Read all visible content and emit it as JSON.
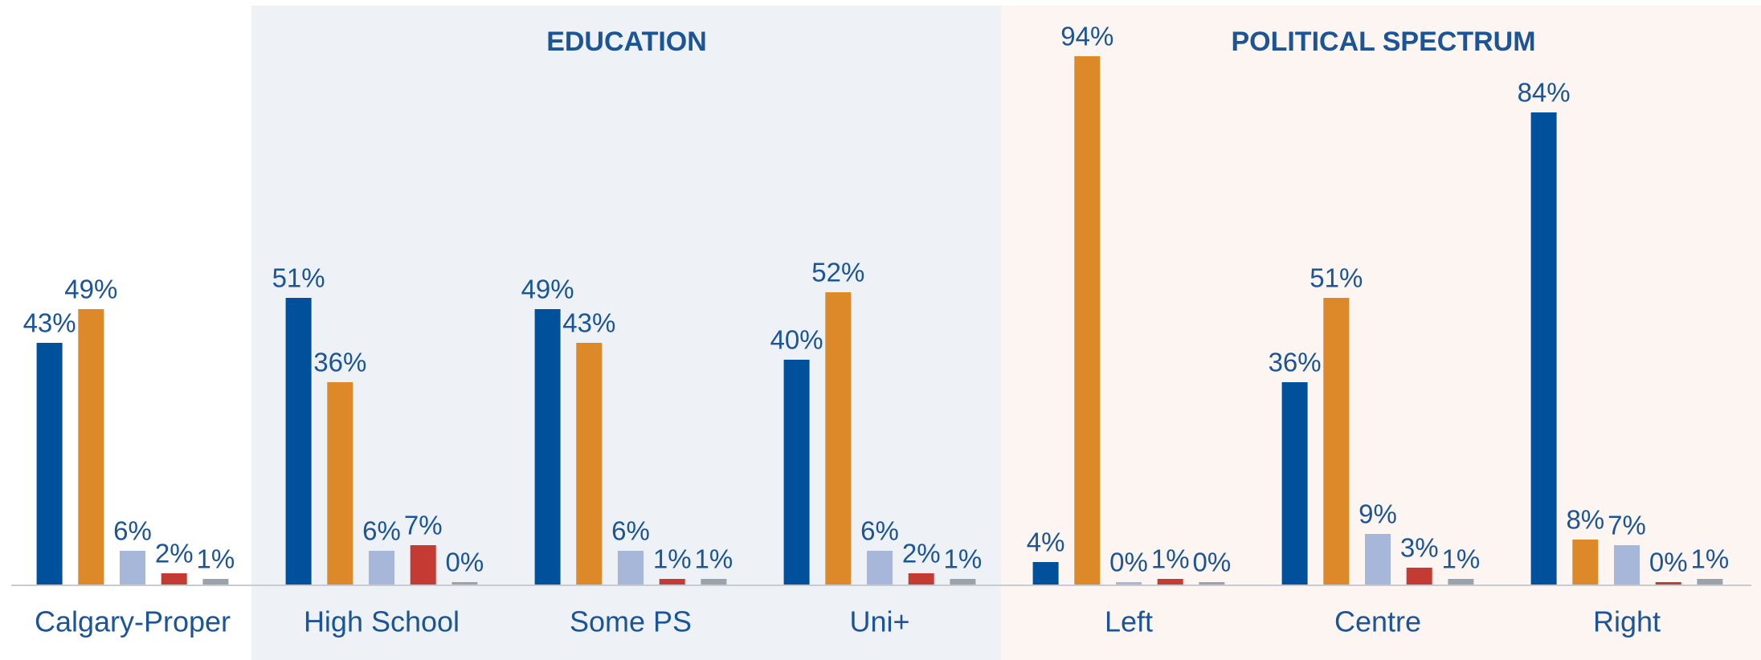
{
  "chart_data": {
    "type": "bar",
    "annotations": [
      "EDUCATION",
      "POLITICAL SPECTRUM"
    ],
    "categories": [
      "Calgary-Proper",
      "High School",
      "Some PS",
      "Uni+",
      "Left",
      "Centre",
      "Right"
    ],
    "series": [
      {
        "color": "#00509b",
        "values": [
          43,
          51,
          49,
          40,
          4,
          36,
          84
        ],
        "value_labels": [
          "43%",
          "51%",
          "49%",
          "40%",
          "4%",
          "36%",
          "84%"
        ]
      },
      {
        "color": "#dd8829",
        "values": [
          49,
          36,
          43,
          52,
          94,
          51,
          8
        ],
        "value_labels": [
          "49%",
          "36%",
          "43%",
          "52%",
          "94%",
          "51%",
          "8%"
        ]
      },
      {
        "color": "#a6b7d9",
        "values": [
          6,
          6,
          6,
          6,
          0,
          9,
          7
        ],
        "value_labels": [
          "6%",
          "6%",
          "6%",
          "6%",
          "0%",
          "9%",
          "7%"
        ]
      },
      {
        "color": "#c43b34",
        "values": [
          2,
          7,
          1,
          2,
          1,
          3,
          0
        ],
        "value_labels": [
          "2%",
          "7%",
          "1%",
          "2%",
          "1%",
          "3%",
          "0%"
        ]
      },
      {
        "color": "#9aa3ab",
        "values": [
          1,
          0,
          1,
          1,
          0,
          1,
          1
        ],
        "value_labels": [
          "1%",
          "0%",
          "1%",
          "1%",
          "0%",
          "1%",
          "1%"
        ]
      }
    ],
    "ylim": [
      0,
      100
    ]
  }
}
